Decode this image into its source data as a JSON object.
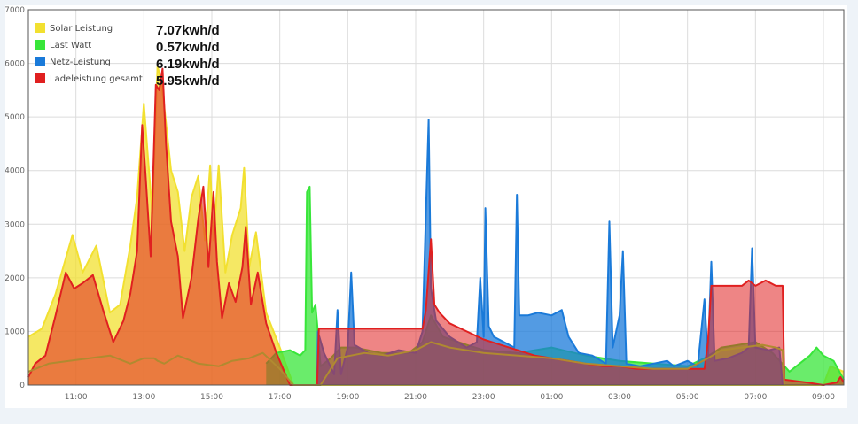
{
  "chart_data": {
    "type": "area",
    "title": "",
    "xlabel": "",
    "ylabel": "",
    "ylim": [
      0,
      7000
    ],
    "xlim_hours": [
      9.6,
      33.6
    ],
    "yticks": [
      "0",
      "1000",
      "2000",
      "3000",
      "4000",
      "5000",
      "6000",
      "7000"
    ],
    "xticks": [
      {
        "h": 11,
        "label": "11:00"
      },
      {
        "h": 13,
        "label": "13:00"
      },
      {
        "h": 15,
        "label": "15:00"
      },
      {
        "h": 17,
        "label": "17:00"
      },
      {
        "h": 19,
        "label": "19:00"
      },
      {
        "h": 21,
        "label": "21:00"
      },
      {
        "h": 23,
        "label": "23:00"
      },
      {
        "h": 25,
        "label": "01:00"
      },
      {
        "h": 27,
        "label": "03:00"
      },
      {
        "h": 29,
        "label": "05:00"
      },
      {
        "h": 31,
        "label": "07:00"
      },
      {
        "h": 33,
        "label": "09:00"
      }
    ],
    "grid": true,
    "legend_position": "top-left",
    "stats": [
      "7.07kwh/d",
      "0.57kwh/d",
      "6.19kwh/d",
      "5.95kwh/d"
    ],
    "series": [
      {
        "name": "Solar Leistung",
        "color": "#f2e030",
        "fill_opacity": 0.75,
        "points": [
          [
            9.6,
            900
          ],
          [
            10.0,
            1050
          ],
          [
            10.4,
            1700
          ],
          [
            10.9,
            2800
          ],
          [
            11.2,
            2100
          ],
          [
            11.6,
            2600
          ],
          [
            12.0,
            1350
          ],
          [
            12.3,
            1500
          ],
          [
            12.6,
            2600
          ],
          [
            12.8,
            3500
          ],
          [
            13.0,
            5250
          ],
          [
            13.1,
            4400
          ],
          [
            13.25,
            3200
          ],
          [
            13.4,
            5950
          ],
          [
            13.5,
            5700
          ],
          [
            13.6,
            5200
          ],
          [
            13.8,
            4000
          ],
          [
            14.0,
            3600
          ],
          [
            14.2,
            2500
          ],
          [
            14.4,
            3500
          ],
          [
            14.6,
            3900
          ],
          [
            14.8,
            2700
          ],
          [
            14.95,
            4100
          ],
          [
            15.05,
            2700
          ],
          [
            15.2,
            4100
          ],
          [
            15.4,
            2100
          ],
          [
            15.6,
            2800
          ],
          [
            15.85,
            3300
          ],
          [
            15.95,
            4050
          ],
          [
            16.1,
            2200
          ],
          [
            16.3,
            2850
          ],
          [
            16.6,
            1350
          ],
          [
            17.0,
            700
          ],
          [
            17.4,
            0
          ],
          [
            17.5,
            0
          ],
          [
            33.0,
            0
          ],
          [
            33.2,
            350
          ],
          [
            33.6,
            250
          ]
        ]
      },
      {
        "name": "Last Watt",
        "color": "#38e63a",
        "fill_opacity": 0.75,
        "points": [
          [
            16.6,
            400
          ],
          [
            16.9,
            600
          ],
          [
            17.3,
            650
          ],
          [
            17.6,
            550
          ],
          [
            17.75,
            650
          ],
          [
            17.8,
            3600
          ],
          [
            17.88,
            3700
          ],
          [
            17.95,
            1350
          ],
          [
            18.05,
            1500
          ],
          [
            18.1,
            1150
          ],
          [
            18.2,
            350
          ],
          [
            18.5,
            500
          ],
          [
            18.8,
            700
          ],
          [
            19.2,
            700
          ],
          [
            20.0,
            600
          ],
          [
            20.8,
            600
          ],
          [
            21.2,
            800
          ],
          [
            21.45,
            1300
          ],
          [
            21.8,
            900
          ],
          [
            22.5,
            750
          ],
          [
            23.0,
            650
          ],
          [
            24.0,
            600
          ],
          [
            25.0,
            700
          ],
          [
            26.0,
            550
          ],
          [
            27.0,
            450
          ],
          [
            28.0,
            400
          ],
          [
            29.0,
            350
          ],
          [
            29.5,
            500
          ],
          [
            30.0,
            700
          ],
          [
            30.5,
            750
          ],
          [
            31.0,
            800
          ],
          [
            31.5,
            600
          ],
          [
            32.0,
            250
          ],
          [
            32.3,
            400
          ],
          [
            32.6,
            550
          ],
          [
            32.8,
            700
          ],
          [
            33.0,
            550
          ],
          [
            33.3,
            450
          ],
          [
            33.6,
            100
          ]
        ]
      },
      {
        "name": "Netz-Leistung",
        "color": "#1a7ad9",
        "fill_opacity": 0.75,
        "points": [
          [
            18.1,
            0
          ],
          [
            18.12,
            1000
          ],
          [
            18.3,
            600
          ],
          [
            18.6,
            200
          ],
          [
            18.7,
            1400
          ],
          [
            18.8,
            200
          ],
          [
            19.0,
            700
          ],
          [
            19.1,
            2100
          ],
          [
            19.2,
            750
          ],
          [
            19.6,
            600
          ],
          [
            20.0,
            550
          ],
          [
            20.5,
            650
          ],
          [
            21.0,
            600
          ],
          [
            21.2,
            1000
          ],
          [
            21.3,
            3200
          ],
          [
            21.38,
            4950
          ],
          [
            21.45,
            1800
          ],
          [
            21.6,
            1200
          ],
          [
            22.0,
            900
          ],
          [
            22.5,
            700
          ],
          [
            22.8,
            800
          ],
          [
            22.9,
            2000
          ],
          [
            23.0,
            900
          ],
          [
            23.05,
            3300
          ],
          [
            23.15,
            1100
          ],
          [
            23.3,
            900
          ],
          [
            23.6,
            800
          ],
          [
            23.9,
            700
          ],
          [
            23.98,
            3550
          ],
          [
            24.05,
            1300
          ],
          [
            24.3,
            1300
          ],
          [
            24.6,
            1350
          ],
          [
            25.0,
            1300
          ],
          [
            25.3,
            1400
          ],
          [
            25.5,
            900
          ],
          [
            25.8,
            600
          ],
          [
            26.2,
            550
          ],
          [
            26.6,
            400
          ],
          [
            26.7,
            3050
          ],
          [
            26.8,
            700
          ],
          [
            27.0,
            1300
          ],
          [
            27.1,
            2500
          ],
          [
            27.2,
            400
          ],
          [
            27.6,
            350
          ],
          [
            28.0,
            400
          ],
          [
            28.4,
            450
          ],
          [
            28.6,
            350
          ],
          [
            29.0,
            450
          ],
          [
            29.3,
            350
          ],
          [
            29.5,
            1600
          ],
          [
            29.6,
            500
          ],
          [
            29.7,
            2300
          ],
          [
            29.8,
            450
          ],
          [
            30.2,
            500
          ],
          [
            30.6,
            600
          ],
          [
            30.8,
            700
          ],
          [
            30.9,
            2550
          ],
          [
            31.0,
            700
          ],
          [
            31.4,
            650
          ],
          [
            31.7,
            700
          ],
          [
            31.8,
            0
          ]
        ]
      },
      {
        "name": "Ladeleistung gesamt",
        "color": "#e02020",
        "fill_opacity": 0.55,
        "points": [
          [
            9.6,
            150
          ],
          [
            9.8,
            400
          ],
          [
            10.1,
            550
          ],
          [
            10.4,
            1300
          ],
          [
            10.7,
            2100
          ],
          [
            10.95,
            1800
          ],
          [
            11.2,
            1900
          ],
          [
            11.5,
            2050
          ],
          [
            11.8,
            1400
          ],
          [
            12.1,
            800
          ],
          [
            12.4,
            1200
          ],
          [
            12.6,
            1700
          ],
          [
            12.8,
            2500
          ],
          [
            12.95,
            4850
          ],
          [
            13.05,
            3900
          ],
          [
            13.2,
            2400
          ],
          [
            13.35,
            5600
          ],
          [
            13.45,
            5500
          ],
          [
            13.55,
            5900
          ],
          [
            13.65,
            4500
          ],
          [
            13.8,
            3050
          ],
          [
            14.0,
            2400
          ],
          [
            14.15,
            1250
          ],
          [
            14.4,
            2000
          ],
          [
            14.6,
            3100
          ],
          [
            14.75,
            3700
          ],
          [
            14.9,
            2200
          ],
          [
            15.05,
            3600
          ],
          [
            15.15,
            2300
          ],
          [
            15.3,
            1250
          ],
          [
            15.5,
            1900
          ],
          [
            15.7,
            1550
          ],
          [
            15.9,
            2200
          ],
          [
            16.0,
            2950
          ],
          [
            16.15,
            1500
          ],
          [
            16.35,
            2100
          ],
          [
            16.6,
            1150
          ],
          [
            16.9,
            600
          ],
          [
            17.3,
            0
          ],
          [
            17.8,
            0
          ],
          [
            18.1,
            0
          ],
          [
            18.15,
            1050
          ],
          [
            18.5,
            1050
          ],
          [
            19.0,
            1050
          ],
          [
            19.5,
            1050
          ],
          [
            20.0,
            1050
          ],
          [
            20.5,
            1050
          ],
          [
            21.0,
            1050
          ],
          [
            21.2,
            1050
          ],
          [
            21.3,
            1400
          ],
          [
            21.45,
            2720
          ],
          [
            21.55,
            1500
          ],
          [
            21.7,
            1350
          ],
          [
            22.0,
            1150
          ],
          [
            22.5,
            1000
          ],
          [
            23.0,
            850
          ],
          [
            23.5,
            750
          ],
          [
            24.0,
            650
          ],
          [
            24.5,
            550
          ],
          [
            25.0,
            500
          ],
          [
            25.5,
            450
          ],
          [
            26.0,
            400
          ],
          [
            26.5,
            350
          ],
          [
            27.0,
            350
          ],
          [
            27.5,
            300
          ],
          [
            28.0,
            300
          ],
          [
            28.5,
            300
          ],
          [
            29.0,
            300
          ],
          [
            29.5,
            300
          ],
          [
            29.6,
            800
          ],
          [
            29.7,
            1850
          ],
          [
            30.2,
            1850
          ],
          [
            30.6,
            1850
          ],
          [
            30.8,
            1950
          ],
          [
            31.0,
            1850
          ],
          [
            31.3,
            1950
          ],
          [
            31.6,
            1850
          ],
          [
            31.8,
            1850
          ],
          [
            31.85,
            100
          ],
          [
            32.5,
            50
          ],
          [
            33.0,
            0
          ],
          [
            33.4,
            50
          ],
          [
            33.5,
            150
          ],
          [
            33.6,
            50
          ]
        ]
      },
      {
        "name": "",
        "color": "#b08a30",
        "fill_opacity": 0.0,
        "points": [
          [
            9.6,
            250
          ],
          [
            10.2,
            400
          ],
          [
            10.8,
            450
          ],
          [
            11.4,
            500
          ],
          [
            12.0,
            550
          ],
          [
            12.6,
            400
          ],
          [
            13.0,
            500
          ],
          [
            13.3,
            500
          ],
          [
            13.4,
            450
          ],
          [
            13.6,
            400
          ],
          [
            14.0,
            550
          ],
          [
            14.6,
            400
          ],
          [
            15.2,
            350
          ],
          [
            15.6,
            450
          ],
          [
            16.1,
            500
          ],
          [
            16.5,
            600
          ],
          [
            17.0,
            300
          ],
          [
            17.4,
            0
          ],
          [
            18.2,
            0
          ],
          [
            18.7,
            500
          ],
          [
            19.5,
            600
          ],
          [
            20.2,
            550
          ],
          [
            21.0,
            650
          ],
          [
            21.45,
            800
          ],
          [
            22.0,
            700
          ],
          [
            23.0,
            600
          ],
          [
            24.0,
            550
          ],
          [
            25.0,
            500
          ],
          [
            26.0,
            400
          ],
          [
            27.0,
            350
          ],
          [
            28.0,
            300
          ],
          [
            29.0,
            300
          ],
          [
            29.6,
            500
          ],
          [
            30.0,
            650
          ],
          [
            30.6,
            700
          ],
          [
            31.2,
            750
          ],
          [
            31.6,
            700
          ],
          [
            31.8,
            650
          ],
          [
            31.85,
            0
          ]
        ]
      }
    ]
  }
}
